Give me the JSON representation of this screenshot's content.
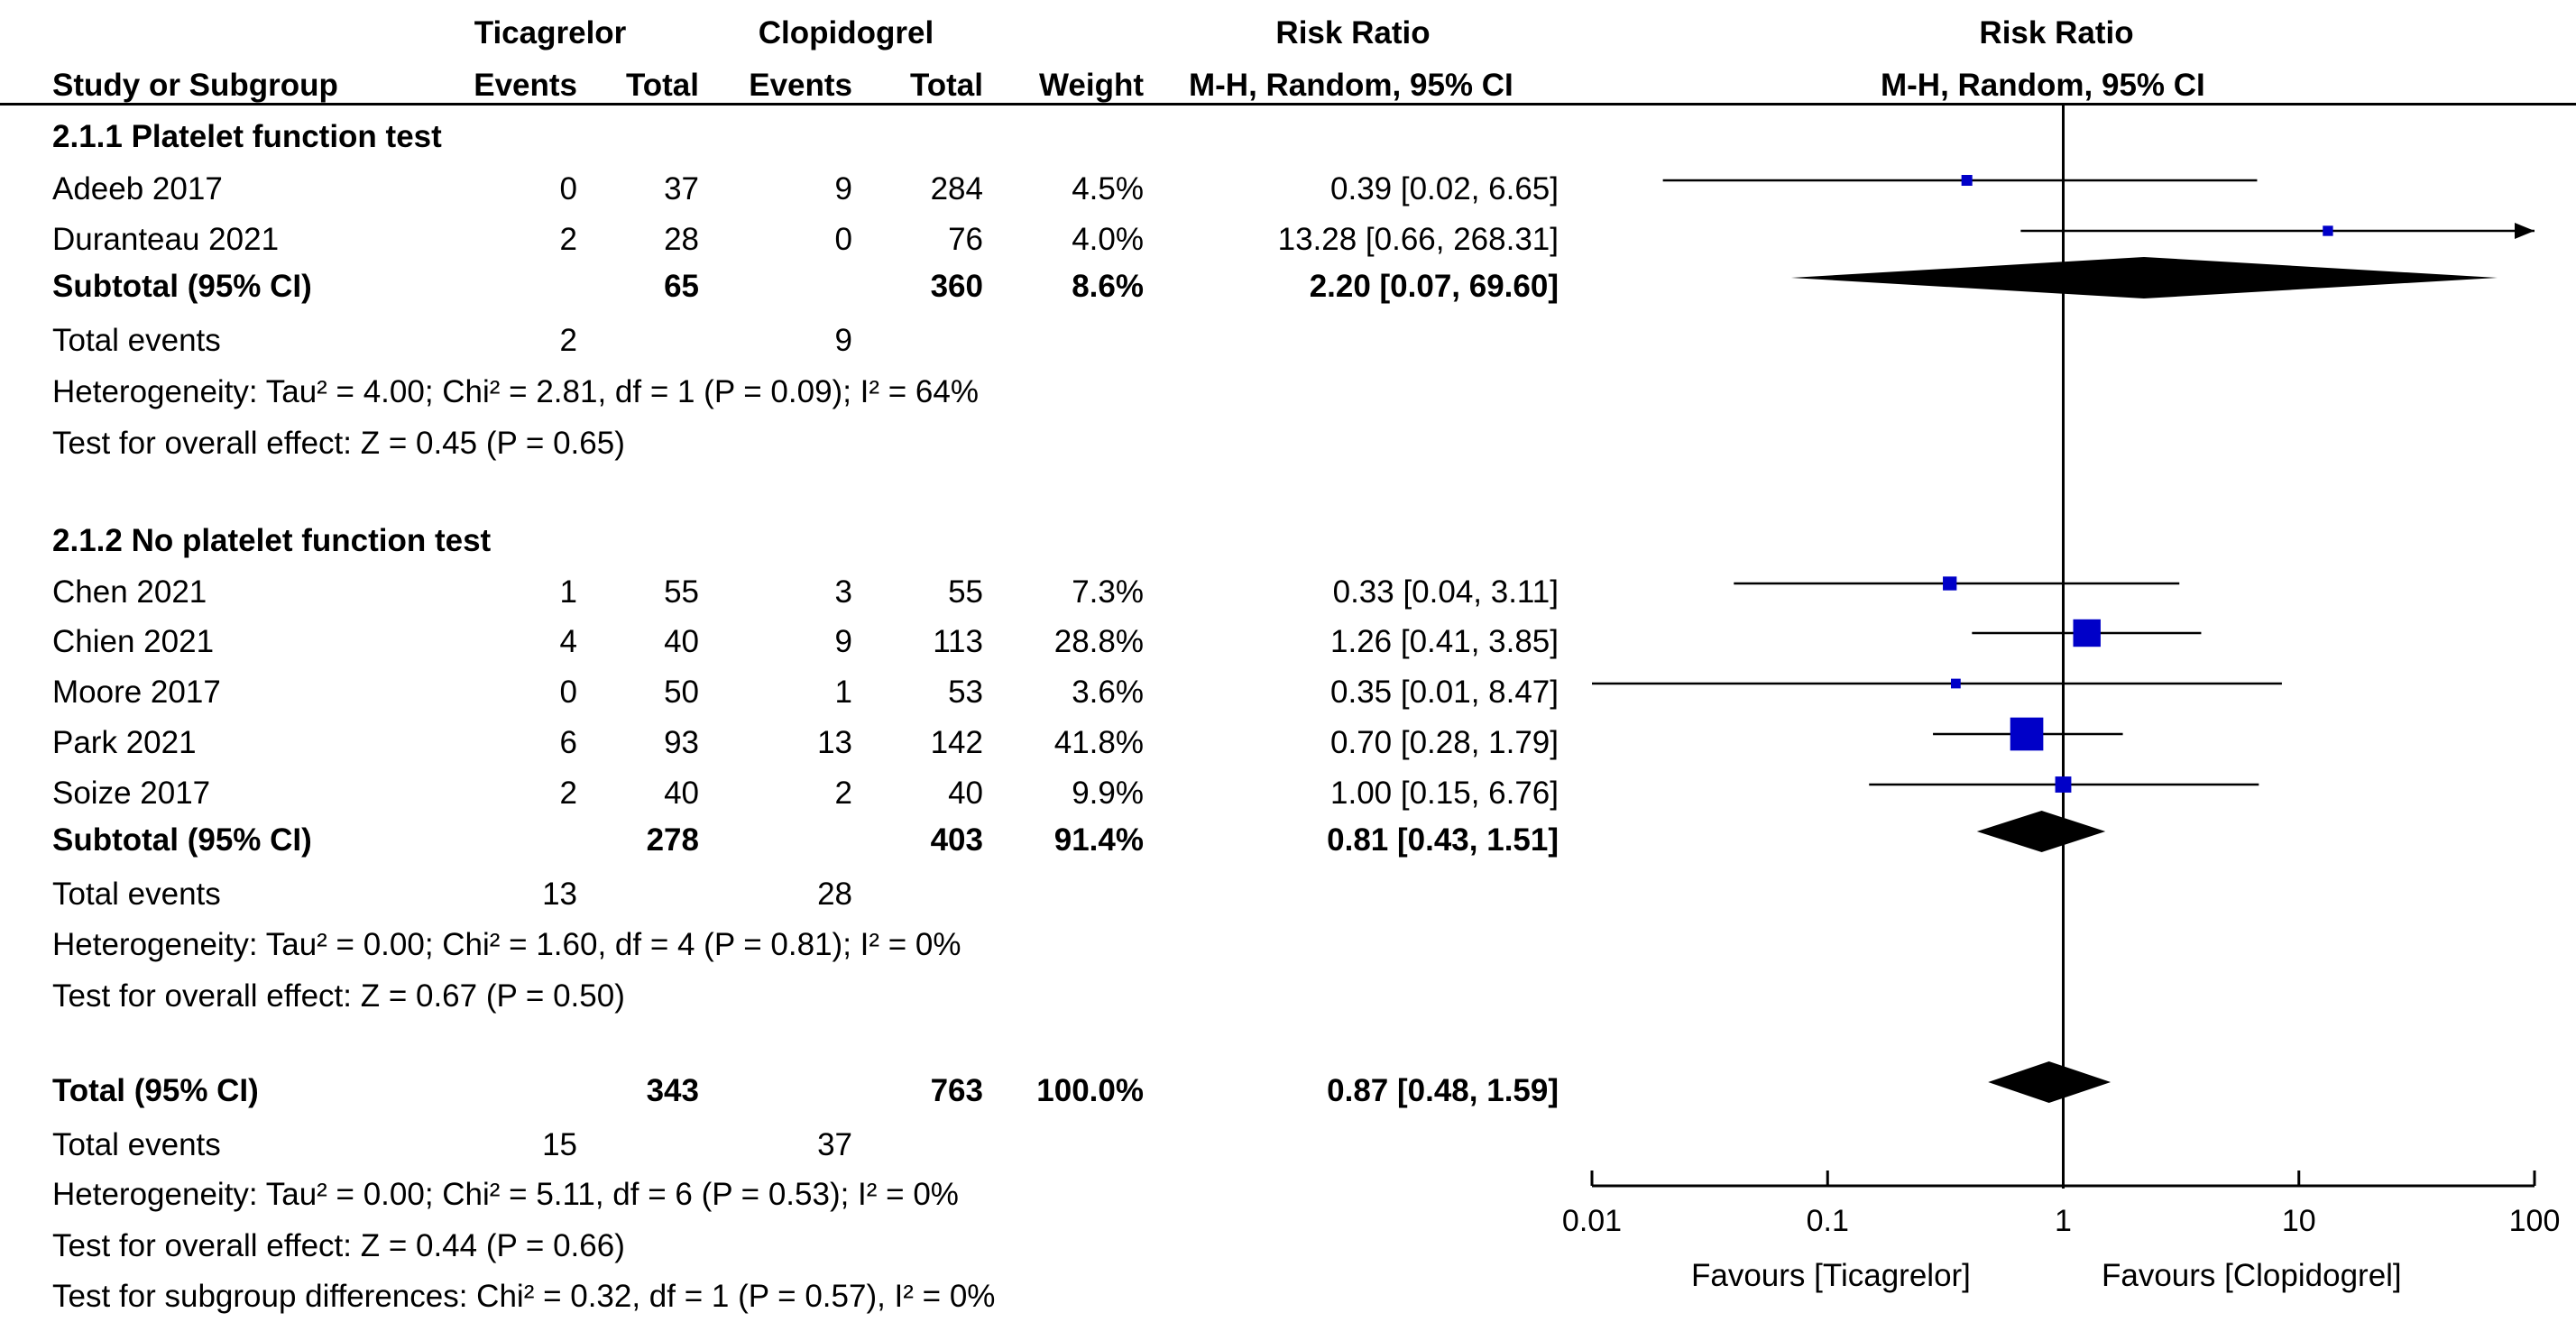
{
  "chart_data": {
    "type": "forest",
    "title": "Risk Ratio",
    "method": "M-H, Random, 95% CI",
    "xscale": "log",
    "xlim": [
      0.01,
      100
    ],
    "xticks": [
      "0.01",
      "0.1",
      "1",
      "10",
      "100"
    ],
    "xtick_values": [
      0.01,
      0.1,
      1,
      10,
      100
    ],
    "favours_left": "Favours [Ticagrelor]",
    "favours_right": "Favours [Clopidogrel]",
    "headers": {
      "group1": "Ticagrelor",
      "group2": "Clopidogrel",
      "study": "Study or Subgroup",
      "events": "Events",
      "total": "Total",
      "weight": "Weight",
      "rr_table": "Risk Ratio",
      "rr_method": "M-H, Random, 95% CI",
      "rr_plot": "Risk Ratio",
      "rr_plot_method": "M-H, Random, 95% CI"
    },
    "subgroups": [
      {
        "name": "2.1.1 Platelet function test",
        "studies": [
          {
            "study": "Adeeb 2017",
            "e1": "0",
            "n1": "37",
            "e2": "9",
            "n2": "284",
            "weight": "4.5%",
            "rr_text": "0.39 [0.02, 6.65]",
            "rr": 0.39,
            "lo": 0.02,
            "hi": 6.65
          },
          {
            "study": "Duranteau 2021",
            "e1": "2",
            "n1": "28",
            "e2": "0",
            "n2": "76",
            "weight": "4.0%",
            "rr_text": "13.28 [0.66, 268.31]",
            "rr": 13.28,
            "lo": 0.66,
            "hi": 268.31
          }
        ],
        "subtotal": {
          "label": "Subtotal (95% CI)",
          "n1": "65",
          "n2": "360",
          "weight": "8.6%",
          "rr_text": "2.20 [0.07, 69.60]",
          "rr": 2.2,
          "lo": 0.07,
          "hi": 69.6
        },
        "total_events": {
          "label": "Total events",
          "e1": "2",
          "e2": "9"
        },
        "heterogeneity": "Heterogeneity: Tau² = 4.00; Chi² = 2.81, df = 1 (P = 0.09); I² = 64%",
        "overall": "Test for overall effect: Z = 0.45 (P = 0.65)"
      },
      {
        "name": "2.1.2 No platelet function test",
        "studies": [
          {
            "study": "Chen 2021",
            "e1": "1",
            "n1": "55",
            "e2": "3",
            "n2": "55",
            "weight": "7.3%",
            "rr_text": "0.33 [0.04, 3.11]",
            "rr": 0.33,
            "lo": 0.04,
            "hi": 3.11
          },
          {
            "study": "Chien 2021",
            "e1": "4",
            "n1": "40",
            "e2": "9",
            "n2": "113",
            "weight": "28.8%",
            "rr_text": "1.26 [0.41, 3.85]",
            "rr": 1.26,
            "lo": 0.41,
            "hi": 3.85
          },
          {
            "study": "Moore 2017",
            "e1": "0",
            "n1": "50",
            "e2": "1",
            "n2": "53",
            "weight": "3.6%",
            "rr_text": "0.35 [0.01, 8.47]",
            "rr": 0.35,
            "lo": 0.01,
            "hi": 8.47
          },
          {
            "study": "Park 2021",
            "e1": "6",
            "n1": "93",
            "e2": "13",
            "n2": "142",
            "weight": "41.8%",
            "rr_text": "0.70 [0.28, 1.79]",
            "rr": 0.7,
            "lo": 0.28,
            "hi": 1.79
          },
          {
            "study": "Soize 2017",
            "e1": "2",
            "n1": "40",
            "e2": "2",
            "n2": "40",
            "weight": "9.9%",
            "rr_text": "1.00 [0.15, 6.76]",
            "rr": 1.0,
            "lo": 0.15,
            "hi": 6.76
          }
        ],
        "subtotal": {
          "label": "Subtotal (95% CI)",
          "n1": "278",
          "n2": "403",
          "weight": "91.4%",
          "rr_text": "0.81 [0.43, 1.51]",
          "rr": 0.81,
          "lo": 0.43,
          "hi": 1.51
        },
        "total_events": {
          "label": "Total events",
          "e1": "13",
          "e2": "28"
        },
        "heterogeneity": "Heterogeneity: Tau² = 0.00; Chi² = 1.60, df = 4 (P = 0.81); I² = 0%",
        "overall": "Test for overall effect: Z = 0.67 (P = 0.50)"
      }
    ],
    "total": {
      "label": "Total (95% CI)",
      "n1": "343",
      "n2": "763",
      "weight": "100.0%",
      "rr_text": "0.87 [0.48, 1.59]",
      "rr": 0.87,
      "lo": 0.48,
      "hi": 1.59
    },
    "total_events": {
      "label": "Total events",
      "e1": "15",
      "e2": "37"
    },
    "heterogeneity": "Heterogeneity: Tau² = 0.00; Chi² = 5.11, df = 6 (P = 0.53); I² = 0%",
    "overall": "Test for overall effect: Z = 0.44 (P = 0.66)",
    "subgroup_diff": "Test for subgroup differences: Chi² = 0.32, df = 1 (P = 0.57), I² = 0%",
    "colors": {
      "marker": "#0000c8",
      "line": "#000000",
      "diamond": "#000000"
    }
  }
}
